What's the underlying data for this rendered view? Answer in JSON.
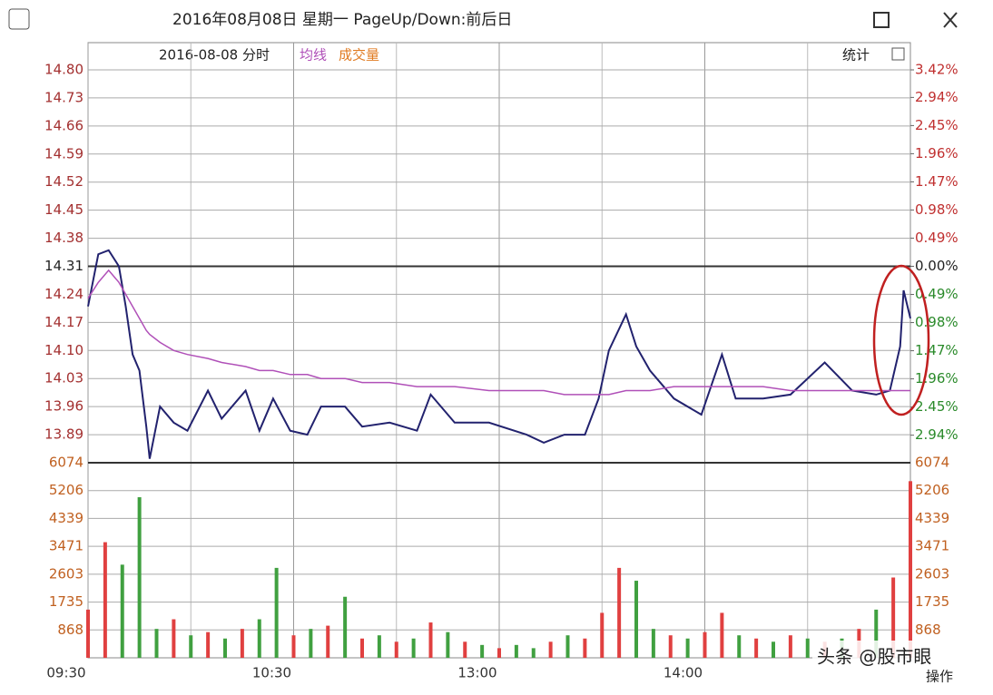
{
  "window": {
    "title": "2016年08月08日 星期一 PageUp/Down:前后日",
    "stats": "统计",
    "action": "操作",
    "watermark": "头条 @股市眼"
  },
  "chart_data": [
    {
      "type": "line",
      "subtitle": "2016-08-08 分时",
      "x": [
        0,
        3,
        6,
        9,
        11,
        13,
        15,
        17,
        18,
        21,
        25,
        29,
        35,
        39,
        46,
        50,
        54,
        59,
        64,
        68,
        75,
        80,
        88,
        96,
        100,
        107,
        117,
        128,
        133,
        139,
        145,
        149,
        152,
        157,
        160,
        164,
        171,
        179,
        185,
        189,
        197,
        205,
        215,
        223,
        230,
        234,
        237,
        238,
        240
      ],
      "series": [
        {
          "color": "#22226e",
          "values": [
            14.21,
            14.34,
            14.35,
            14.31,
            14.21,
            14.09,
            14.05,
            13.91,
            13.83,
            13.96,
            13.92,
            13.9,
            14.0,
            13.93,
            14.0,
            13.9,
            13.98,
            13.9,
            13.89,
            13.96,
            13.96,
            13.91,
            13.92,
            13.9,
            13.99,
            13.92,
            13.92,
            13.89,
            13.87,
            13.89,
            13.89,
            13.98,
            14.1,
            14.19,
            14.11,
            14.05,
            13.98,
            13.94,
            14.09,
            13.98,
            13.98,
            13.99,
            14.07,
            14.0,
            13.99,
            14.0,
            14.11,
            14.25,
            14.18
          ]
        },
        {
          "name": "均线",
          "color": "#b050b8",
          "values": [
            14.23,
            14.27,
            14.3,
            14.27,
            14.24,
            14.21,
            14.18,
            14.15,
            14.14,
            14.12,
            14.1,
            14.09,
            14.08,
            14.07,
            14.06,
            14.05,
            14.05,
            14.04,
            14.04,
            14.03,
            14.03,
            14.02,
            14.02,
            14.01,
            14.01,
            14.01,
            14.0,
            14.0,
            14.0,
            13.99,
            13.99,
            13.99,
            13.99,
            14.0,
            14.0,
            14.0,
            14.01,
            14.01,
            14.01,
            14.01,
            14.01,
            14.0,
            14.0,
            14.0,
            14.0,
            14.0,
            14.0,
            14.0,
            14.0
          ]
        }
      ],
      "xlim": [
        0,
        240
      ],
      "xticks": [
        {
          "value": 0,
          "label": "09:30"
        },
        {
          "value": 60,
          "label": "10:30"
        },
        {
          "value": 120,
          "label": "13:00"
        },
        {
          "value": 180,
          "label": "14:00"
        }
      ],
      "ylim": [
        13.82,
        14.8
      ],
      "yticks": [
        13.89,
        13.96,
        14.03,
        {
          "value": 14.1,
          "label": "14.10"
        },
        14.17,
        14.24,
        14.31,
        14.38,
        14.45,
        14.52,
        14.59,
        14.66,
        14.73,
        {
          "value": 14.8,
          "label": "14.80"
        }
      ],
      "y2lim": [
        -3.42,
        3.42
      ],
      "y2ticks": [
        {
          "value": -2.94,
          "label": "2.94%"
        },
        {
          "value": -2.45,
          "label": "2.45%"
        },
        {
          "value": -1.96,
          "label": "1.96%"
        },
        {
          "value": -1.47,
          "label": "1.47%"
        },
        {
          "value": -0.98,
          "label": "0.98%"
        },
        {
          "value": -0.49,
          "label": "0.49%"
        },
        {
          "value": 0,
          "label": "0.00%"
        },
        {
          "value": 0.49,
          "label": "0.49%"
        },
        {
          "value": 0.98,
          "label": "0.98%"
        },
        {
          "value": 1.47,
          "label": "1.47%"
        },
        {
          "value": 1.96,
          "label": "1.96%"
        },
        {
          "value": 2.45,
          "label": "2.45%"
        },
        {
          "value": 2.94,
          "label": "2.94%"
        },
        {
          "value": 3.42,
          "label": "3.42%"
        }
      ],
      "grid": true
    },
    {
      "type": "bar",
      "x": [
        0,
        5,
        10,
        15,
        20,
        25,
        30,
        35,
        40,
        45,
        50,
        55,
        60,
        65,
        70,
        75,
        80,
        85,
        90,
        95,
        100,
        105,
        110,
        115,
        120,
        125,
        130,
        135,
        140,
        145,
        150,
        155,
        160,
        165,
        170,
        175,
        180,
        185,
        190,
        195,
        200,
        205,
        210,
        215,
        220,
        225,
        230,
        235,
        240
      ],
      "series": [
        {
          "name": "成交量",
          "color": "#e07a20",
          "values": [
            1500,
            3600,
            2900,
            5000,
            900,
            1200,
            700,
            800,
            600,
            900,
            1200,
            2800,
            700,
            900,
            1000,
            1900,
            600,
            700,
            500,
            600,
            1100,
            800,
            500,
            400,
            300,
            400,
            300,
            500,
            700,
            600,
            1400,
            2800,
            2400,
            900,
            700,
            600,
            800,
            1400,
            700,
            600,
            500,
            700,
            600,
            500,
            600,
            900,
            1500,
            2500,
            5500
          ],
          "colors": [
            "#e04040",
            "#e04040",
            "#40a040",
            "#40a040",
            "#40a040",
            "#e04040",
            "#40a040",
            "#e04040",
            "#40a040",
            "#e04040",
            "#40a040",
            "#40a040",
            "#e04040",
            "#40a040",
            "#e04040",
            "#40a040",
            "#e04040",
            "#40a040",
            "#e04040",
            "#40a040",
            "#e04040",
            "#40a040",
            "#e04040",
            "#40a040",
            "#e04040",
            "#40a040",
            "#40a040",
            "#e04040",
            "#40a040",
            "#e04040",
            "#e04040",
            "#e04040",
            "#40a040",
            "#40a040",
            "#e04040",
            "#40a040",
            "#e04040",
            "#e04040",
            "#40a040",
            "#e04040",
            "#40a040",
            "#e04040",
            "#40a040",
            "#e04040",
            "#40a040",
            "#e04040",
            "#40a040",
            "#e04040",
            "#e04040"
          ]
        }
      ],
      "xlim": [
        0,
        240
      ],
      "ylim": [
        0,
        6074
      ],
      "yticks": [
        868,
        1735,
        2603,
        3471,
        4339,
        5206,
        6074
      ]
    }
  ]
}
